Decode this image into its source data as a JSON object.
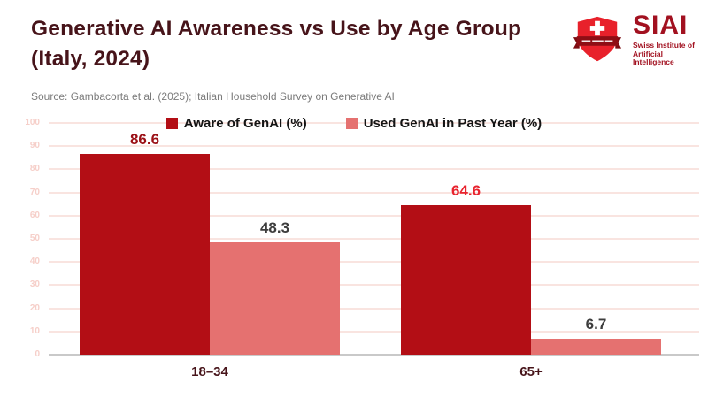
{
  "header": {
    "title": "Generative AI Awareness vs Use by Age Group (Italy, 2024)",
    "source": "Source: Gambacorta et al. (2025); Italian Household Survey on Generative AI"
  },
  "logo": {
    "acronym": "SIAI",
    "name_line1": "Swiss Institute of",
    "name_line2": "Artificial Intelligence",
    "brand_color": "#a21120",
    "shield_color": "#e8212b",
    "ribbon_color": "#8f0e15"
  },
  "chart_data": {
    "type": "bar",
    "title": "Generative AI Awareness vs Use by Age Group (Italy, 2024)",
    "categories": [
      "18–34",
      "65+"
    ],
    "series": [
      {
        "name": "Aware of GenAI (%)",
        "values": [
          86.6,
          64.6
        ],
        "color": "#b30e15",
        "label_colors": [
          "#9b1016",
          "#e8232e"
        ]
      },
      {
        "name": "Used GenAI in Past Year (%)",
        "values": [
          48.3,
          6.7
        ],
        "color": "#e57170",
        "label_colors": [
          "#3d3d3d",
          "#3d3d3d"
        ]
      }
    ],
    "xlabel": "",
    "ylabel": "",
    "ylim": [
      0,
      100
    ],
    "ytick_step": 10,
    "grid": true,
    "grid_color": "#f9e4e0",
    "ytick_color": "#f6cfc9",
    "baseline_color": "#c9c9c9",
    "xtick_color": "#47141a",
    "legend_position": "top-center"
  }
}
